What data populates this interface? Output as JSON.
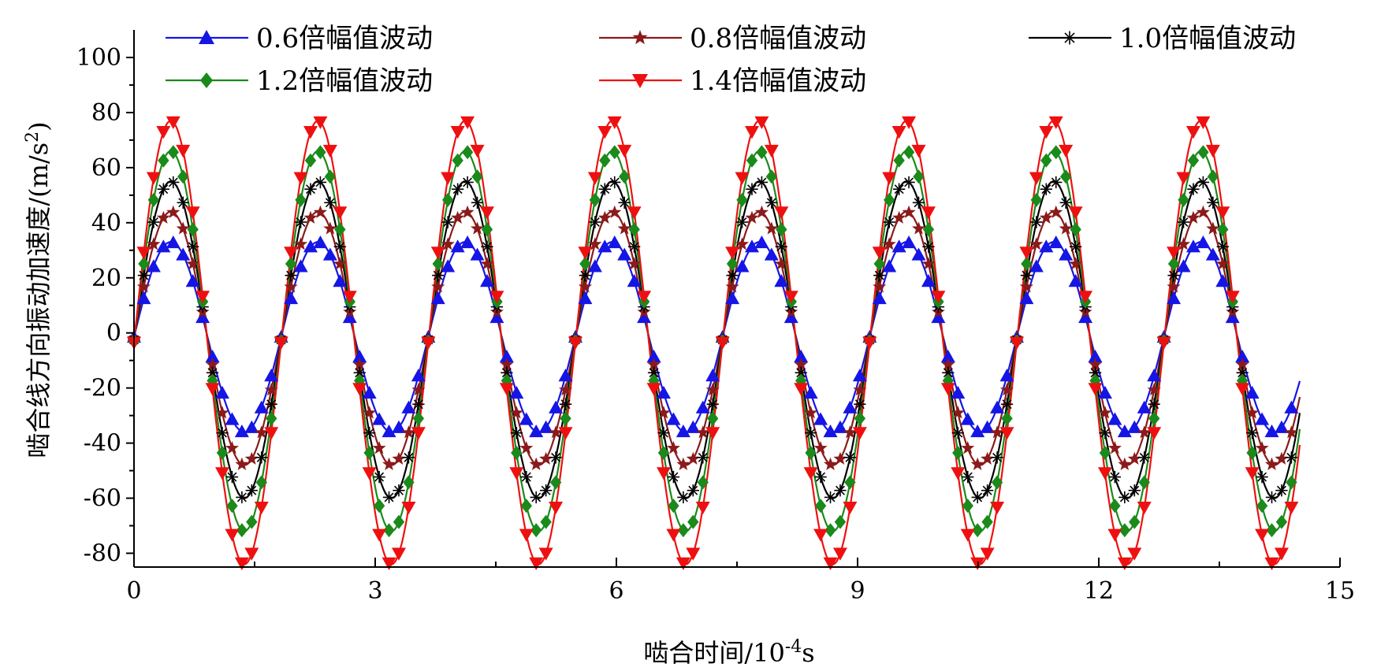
{
  "chart_data": {
    "type": "line",
    "xlabel": "啮合时间/10",
    "xlabel_sup": "-4",
    "xlabel_suffix": "s",
    "ylabel": "啮合线方向振动加速度/(m/s",
    "ylabel_sup": "2",
    "ylabel_suffix": ")",
    "xlim": [
      0,
      15
    ],
    "ylim": [
      -85,
      110
    ],
    "xticks": [
      0,
      3,
      6,
      9,
      12,
      15
    ],
    "xtick_labels": [
      "0",
      "3",
      "6",
      "9",
      "12",
      "15"
    ],
    "yticks": [
      -80,
      -60,
      -40,
      -20,
      0,
      20,
      40,
      60,
      80,
      100
    ],
    "ytick_labels": [
      "-80",
      "-60",
      "-40",
      "-20",
      "0",
      "20",
      "40",
      "60",
      "80",
      "100"
    ],
    "grid": false,
    "legend_position": "top",
    "period": 1.83,
    "sample_step": 0.122,
    "x_end": 14.5,
    "series": [
      {
        "name": "0.6倍幅值波动",
        "color": "#1515e6",
        "marker": "triangle-up",
        "amplitude": 34.5,
        "offset": 1.5
      },
      {
        "name": "0.8倍幅值波动",
        "color": "#8b1a1a",
        "marker": "star",
        "amplitude": 46,
        "offset": 2
      },
      {
        "name": "1.0倍幅值波动",
        "color": "#000000",
        "marker": "asterisk",
        "amplitude": 57.5,
        "offset": 2.5
      },
      {
        "name": "1.2倍幅值波动",
        "color": "#1a8a1a",
        "marker": "diamond",
        "amplitude": 69,
        "offset": 3
      },
      {
        "name": "1.4倍幅值波动",
        "color": "#ee1010",
        "marker": "triangle-down",
        "amplitude": 80.5,
        "offset": 3.5
      }
    ]
  }
}
